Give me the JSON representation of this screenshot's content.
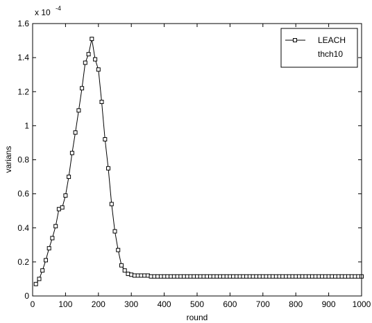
{
  "chart_data": {
    "type": "line",
    "xlabel": "round",
    "ylabel": "varians",
    "scale_label": "x 10",
    "scale_exponent": "-4",
    "xlim": [
      0,
      1000
    ],
    "ylim": [
      0,
      1.6
    ],
    "xticks": [
      "0",
      "100",
      "200",
      "300",
      "400",
      "500",
      "600",
      "700",
      "800",
      "900",
      "1000"
    ],
    "yticks": [
      "0",
      "0.2",
      "0.4",
      "0.6",
      "0.8",
      "1",
      "1.2",
      "1.4",
      "1.6"
    ],
    "legend_position": "top-right",
    "grid": false,
    "series": [
      {
        "name": "LEACH",
        "marker": "square",
        "color": "#000000",
        "points": [
          [
            10,
            0.07
          ],
          [
            20,
            0.1
          ],
          [
            30,
            0.15
          ],
          [
            40,
            0.21
          ],
          [
            50,
            0.28
          ],
          [
            60,
            0.34
          ],
          [
            70,
            0.41
          ],
          [
            80,
            0.51
          ],
          [
            90,
            0.52
          ],
          [
            100,
            0.59
          ],
          [
            110,
            0.7
          ],
          [
            120,
            0.84
          ],
          [
            130,
            0.96
          ],
          [
            140,
            1.09
          ],
          [
            150,
            1.22
          ],
          [
            160,
            1.37
          ],
          [
            170,
            1.42
          ],
          [
            180,
            1.51
          ],
          [
            190,
            1.39
          ],
          [
            200,
            1.33
          ],
          [
            210,
            1.14
          ],
          [
            220,
            0.92
          ],
          [
            230,
            0.75
          ],
          [
            240,
            0.54
          ],
          [
            250,
            0.38
          ],
          [
            260,
            0.27
          ],
          [
            270,
            0.18
          ],
          [
            280,
            0.15
          ],
          [
            290,
            0.13
          ],
          [
            300,
            0.125
          ],
          [
            310,
            0.12
          ],
          [
            320,
            0.12
          ],
          [
            330,
            0.12
          ],
          [
            340,
            0.12
          ],
          [
            350,
            0.12
          ],
          [
            360,
            0.115
          ],
          [
            370,
            0.115
          ],
          [
            380,
            0.115
          ],
          [
            390,
            0.115
          ],
          [
            400,
            0.115
          ],
          [
            410,
            0.115
          ],
          [
            420,
            0.115
          ],
          [
            430,
            0.115
          ],
          [
            440,
            0.115
          ],
          [
            450,
            0.115
          ],
          [
            460,
            0.115
          ],
          [
            470,
            0.115
          ],
          [
            480,
            0.115
          ],
          [
            490,
            0.115
          ],
          [
            500,
            0.115
          ],
          [
            510,
            0.115
          ],
          [
            520,
            0.115
          ],
          [
            530,
            0.115
          ],
          [
            540,
            0.115
          ],
          [
            550,
            0.115
          ],
          [
            560,
            0.115
          ],
          [
            570,
            0.115
          ],
          [
            580,
            0.115
          ],
          [
            590,
            0.115
          ],
          [
            600,
            0.115
          ],
          [
            610,
            0.115
          ],
          [
            620,
            0.115
          ],
          [
            630,
            0.115
          ],
          [
            640,
            0.115
          ],
          [
            650,
            0.115
          ],
          [
            660,
            0.115
          ],
          [
            670,
            0.115
          ],
          [
            680,
            0.115
          ],
          [
            690,
            0.115
          ],
          [
            700,
            0.115
          ],
          [
            710,
            0.115
          ],
          [
            720,
            0.115
          ],
          [
            730,
            0.115
          ],
          [
            740,
            0.115
          ],
          [
            750,
            0.115
          ],
          [
            760,
            0.115
          ],
          [
            770,
            0.115
          ],
          [
            780,
            0.115
          ],
          [
            790,
            0.115
          ],
          [
            800,
            0.115
          ],
          [
            810,
            0.115
          ],
          [
            820,
            0.115
          ],
          [
            830,
            0.115
          ],
          [
            840,
            0.115
          ],
          [
            850,
            0.115
          ],
          [
            860,
            0.115
          ],
          [
            870,
            0.115
          ],
          [
            880,
            0.115
          ],
          [
            890,
            0.115
          ],
          [
            900,
            0.115
          ],
          [
            910,
            0.115
          ],
          [
            920,
            0.115
          ],
          [
            930,
            0.115
          ],
          [
            940,
            0.115
          ],
          [
            950,
            0.115
          ],
          [
            960,
            0.115
          ],
          [
            970,
            0.115
          ],
          [
            980,
            0.115
          ],
          [
            990,
            0.115
          ],
          [
            1000,
            0.115
          ]
        ]
      },
      {
        "name": "thch10",
        "marker": "none",
        "color": "#ffffff",
        "points": []
      }
    ]
  }
}
